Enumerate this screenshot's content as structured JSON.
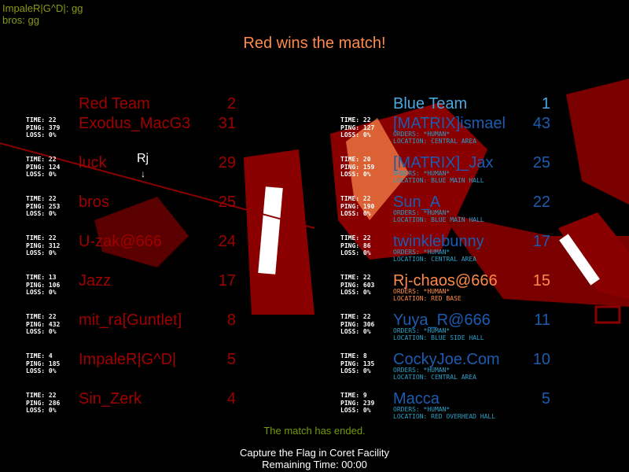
{
  "chat": [
    "ImpaleR|G^D|: gg",
    "bros: gg"
  ],
  "title": "Red wins the match!",
  "marker_label": "Rj",
  "red_team": {
    "name": "Red Team",
    "score": "2",
    "color": "#a00000",
    "players": [
      {
        "name": "Exodus_MacG3",
        "score": "31",
        "time": "22",
        "ping": "379",
        "loss": "0%"
      },
      {
        "name": "luck",
        "score": "29",
        "time": "22",
        "ping": "124",
        "loss": "0%"
      },
      {
        "name": "bros",
        "score": "25",
        "time": "22",
        "ping": "253",
        "loss": "0%"
      },
      {
        "name": "U-zak@666",
        "score": "24",
        "time": "22",
        "ping": "312",
        "loss": "0%"
      },
      {
        "name": "Jazz",
        "score": "17",
        "time": "13",
        "ping": "106",
        "loss": "0%"
      },
      {
        "name": "mit_ra[Guntlet]",
        "score": "8",
        "time": "22",
        "ping": "432",
        "loss": "0%"
      },
      {
        "name": "ImpaleR|G^D|",
        "score": "5",
        "time": "4",
        "ping": "185",
        "loss": "0%"
      },
      {
        "name": "Sin_Zerk",
        "score": "4",
        "time": "22",
        "ping": "286",
        "loss": "0%"
      }
    ]
  },
  "blue_team": {
    "name": "Blue Team",
    "score": "1",
    "color": "#1c5cb0",
    "header_color": "#4aa8e0",
    "players": [
      {
        "name": "[MATRIX]ismael",
        "score": "43",
        "time": "22",
        "ping": "127",
        "loss": "0%",
        "orders": "*HUMAN*",
        "location": "CENTRAL AREA"
      },
      {
        "name": "[MATRIX]_Jax",
        "score": "25",
        "time": "20",
        "ping": "159",
        "loss": "0%",
        "orders": "*HUMAN*",
        "location": "BLUE MAIN HALL"
      },
      {
        "name": "Sun_A",
        "score": "22",
        "time": "22",
        "ping": "190",
        "loss": "0%",
        "orders": "*HUMAN*",
        "location": "BLUE MAIN HALL"
      },
      {
        "name": "twinklebunny",
        "score": "17",
        "time": "22",
        "ping": "86",
        "loss": "0%",
        "orders": "*HUMAN*",
        "location": "CENTRAL AREA"
      },
      {
        "name": "Rj-chaos@666",
        "score": "15",
        "time": "22",
        "ping": "603",
        "loss": "0%",
        "orders": "*HUMAN*",
        "location": "RED BASE",
        "highlight": "#ff8a4a"
      },
      {
        "name": "Yuya_R@666",
        "score": "11",
        "time": "22",
        "ping": "306",
        "loss": "0%",
        "orders": "*HUMAN*",
        "location": "BLUE SIDE HALL"
      },
      {
        "name": "CockyJoe.Com",
        "score": "10",
        "time": "8",
        "ping": "135",
        "loss": "0%",
        "orders": "*HUMAN*",
        "location": "CENTRAL AREA"
      },
      {
        "name": "Macca",
        "score": "5",
        "time": "9",
        "ping": "239",
        "loss": "0%",
        "orders": "*HUMAN*",
        "location": "RED OVERHEAD HALL"
      }
    ]
  },
  "labels": {
    "time": "TIME:",
    "ping": "PING:",
    "loss": "LOSS:",
    "orders": "ORDERS:",
    "location": "LOCATION:"
  },
  "status": "The match has ended.",
  "footer": {
    "map": "Capture the Flag in Coret Facility",
    "remaining": "Remaining Time:  00:00"
  }
}
